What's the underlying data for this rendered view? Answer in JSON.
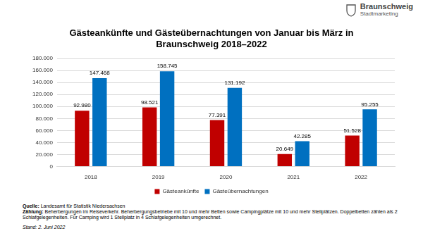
{
  "chart_data": {
    "type": "bar",
    "title": [
      "Gästeankünfte und Gästeübernachtungen von Januar bis März in",
      "Braunschweig 2018–2022"
    ],
    "categories": [
      "2018",
      "2019",
      "2020",
      "2021",
      "2022"
    ],
    "series": [
      {
        "name": "Gästeankünfte",
        "color": "#c00000",
        "values": [
          92980,
          98521,
          77391,
          20649,
          51528
        ],
        "value_labels": [
          "92.980",
          "98.521",
          "77.391",
          "20.649",
          "51.528"
        ]
      },
      {
        "name": "Gästeübernachtungen",
        "color": "#0070c0",
        "values": [
          147468,
          158745,
          131192,
          42285,
          95255
        ],
        "value_labels": [
          "147.468",
          "158.745",
          "131.192",
          "42.285",
          "95.255"
        ]
      }
    ],
    "ylim": [
      0,
      180000
    ],
    "yticks": [
      0,
      {
        "value": 20000,
        "label": "20.000"
      },
      {
        "value": 40000,
        "label": "40.000"
      },
      {
        "value": 60000,
        "label": "60.000"
      },
      {
        "value": 80000,
        "label": "80.000"
      },
      {
        "value": 100000,
        "label": "100.000"
      },
      {
        "value": 120000,
        "label": "120.000"
      },
      {
        "value": 140000,
        "label": "140.000"
      },
      {
        "value": 160000,
        "label": "160.000"
      },
      {
        "value": 180000,
        "label": "180.000"
      }
    ],
    "grid": true,
    "legend": "bottom",
    "data_labels": true
  },
  "logo": {
    "title": "Braunschweig",
    "subtitle": "Stadtmarketing"
  },
  "footer": [
    {
      "label": "Quelle:",
      "text": "Landesamt für Statistik Niedersachsen"
    },
    {
      "label": "Zählung:",
      "text": "Beherbergungen im Reiseverkehr. Beherbergungsbetriebe mit 10 und mehr Betten sowie Campingplätze mit 10 und mehr Stellplätzen. Doppelbetten zählen als 2 Schlafgelegenheiten. Für Camping wird 1 Stellplatz in 4 Schlafgelegenheiten umgerechnet."
    }
  ],
  "stand": "Stand: 2. Juni 2022"
}
